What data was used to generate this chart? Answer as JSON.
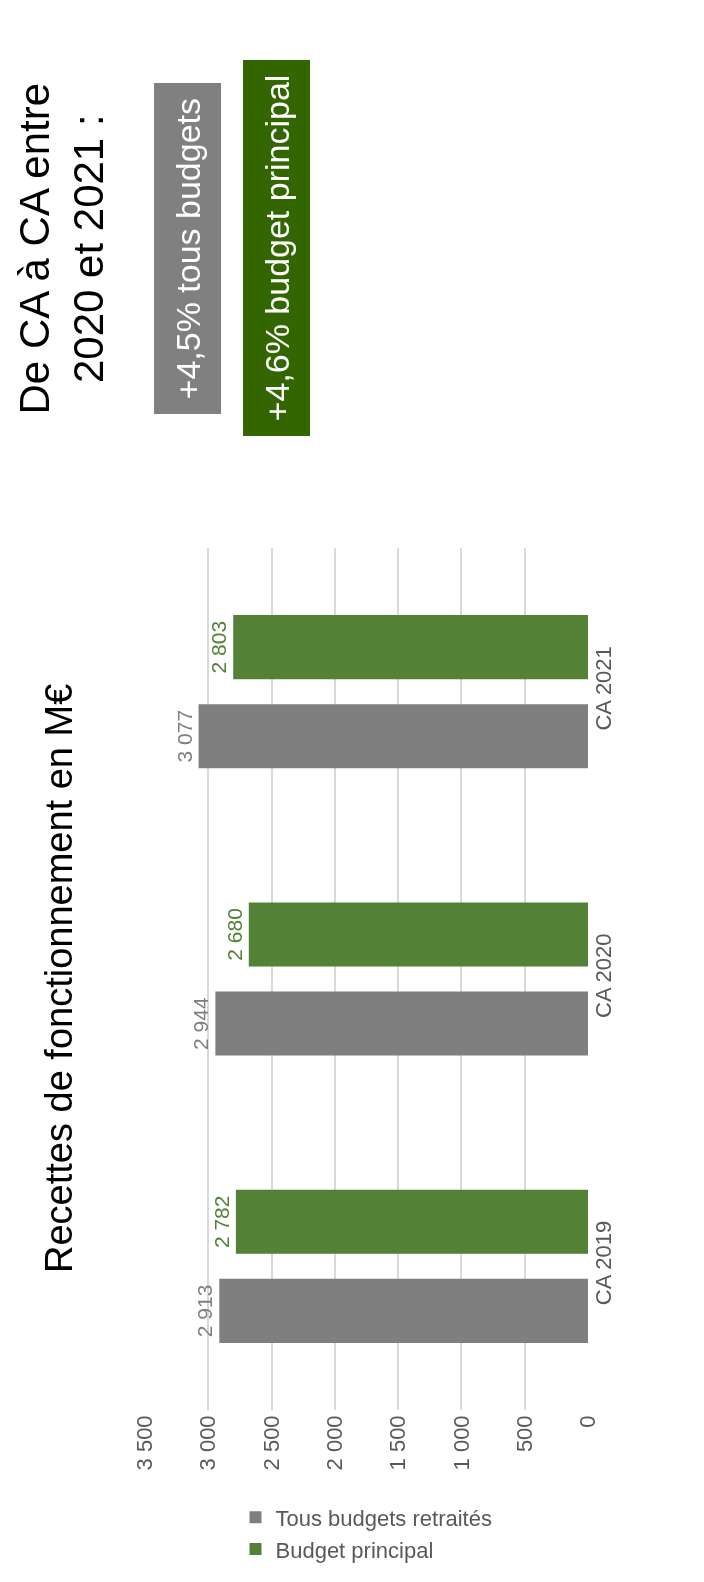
{
  "chart_data": {
    "type": "bar",
    "orientation": "horizontal",
    "title": "Recettes de fonctionnement en M€",
    "categories": [
      "CA 2021",
      "CA 2020",
      "CA 2019"
    ],
    "series": [
      {
        "name": "Tous budgets retraités",
        "color": "#7f7f7f",
        "values": [
          3077,
          2944,
          2913
        ],
        "value_labels": [
          "3 077",
          "2 944",
          "2 913"
        ]
      },
      {
        "name": "Budget principal",
        "color": "#538135",
        "values": [
          2803,
          2680,
          2782
        ],
        "value_labels": [
          "2 803",
          "2 680",
          "2 782"
        ]
      }
    ],
    "xlim": [
      3500,
      0
    ],
    "xticks": [
      {
        "value": 3500,
        "label": "3 500"
      },
      {
        "value": 3000,
        "label": "3 000"
      },
      {
        "value": 2500,
        "label": "2 500"
      },
      {
        "value": 2000,
        "label": "2 000"
      },
      {
        "value": 1500,
        "label": "1 500"
      },
      {
        "value": 1000,
        "label": "1 000"
      },
      {
        "value": 500,
        "label": "500"
      },
      0
    ],
    "grid": "x",
    "legend": "bottom",
    "annotations": [
      "De CA à CA entre\n2020 et 2021 :",
      "+4,5% tous budgets",
      "+4,6% budget principal"
    ]
  }
}
